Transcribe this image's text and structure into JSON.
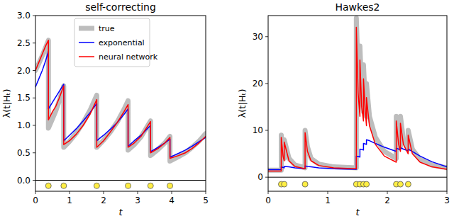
{
  "chart_data": [
    {
      "type": "line",
      "title": "self-correcting",
      "x_label": "t",
      "y_label": "λ(t|Hₜ)",
      "xlim": [
        0,
        5
      ],
      "ylim": [
        -0.2,
        3.0
      ],
      "xticks": [
        0,
        1,
        2,
        3,
        4,
        5
      ],
      "yticks": [
        {
          "value": 0,
          "label": "0.0"
        },
        0.5,
        {
          "value": 1,
          "label": "1.0"
        },
        1.5,
        {
          "value": 2,
          "label": "2.0"
        },
        2.5,
        {
          "value": 3,
          "label": "3.0"
        }
      ],
      "legend": "upper center",
      "x": [
        0,
        0.1,
        0.2,
        0.3,
        0.38,
        0.38,
        0.5,
        0.6,
        0.7,
        0.83,
        0.83,
        1.0,
        1.2,
        1.4,
        1.6,
        1.8,
        1.8,
        2.0,
        2.2,
        2.4,
        2.6,
        2.72,
        2.72,
        2.9,
        3.1,
        3.38,
        3.38,
        3.6,
        3.8,
        3.95,
        3.95,
        4.2,
        4.4,
        4.6,
        4.8,
        5.0
      ],
      "series": [
        {
          "name": "true",
          "color": "#bdbdbd",
          "line_style": "thick",
          "values": [
            2.0,
            2.13,
            2.27,
            2.42,
            2.55,
            0.95,
            1.12,
            1.27,
            1.45,
            1.72,
            0.6,
            0.71,
            0.86,
            1.05,
            1.27,
            1.55,
            0.6,
            0.73,
            0.88,
            1.06,
            1.29,
            1.45,
            0.55,
            0.65,
            0.79,
            1.08,
            0.45,
            0.56,
            0.68,
            0.8,
            0.35,
            0.43,
            0.5,
            0.6,
            0.71,
            0.85
          ]
        },
        {
          "name": "exponential",
          "color": "#0000ff",
          "line_style": "solid",
          "values": [
            1.7,
            1.85,
            2.0,
            2.18,
            2.35,
            1.3,
            1.42,
            1.52,
            1.62,
            1.75,
            0.72,
            0.82,
            0.94,
            1.08,
            1.23,
            1.4,
            0.72,
            0.82,
            0.93,
            1.05,
            1.2,
            1.3,
            0.62,
            0.72,
            0.82,
            1.0,
            0.52,
            0.6,
            0.68,
            0.75,
            0.42,
            0.49,
            0.55,
            0.62,
            0.7,
            0.78
          ]
        },
        {
          "name": "neural network",
          "color": "#ff0000",
          "line_style": "solid",
          "values": [
            2.0,
            2.15,
            2.3,
            2.45,
            2.55,
            1.1,
            1.25,
            1.35,
            1.5,
            1.72,
            0.65,
            0.72,
            0.84,
            1.0,
            1.2,
            1.47,
            0.6,
            0.72,
            0.88,
            1.05,
            1.25,
            1.38,
            0.6,
            0.68,
            0.8,
            1.07,
            0.5,
            0.58,
            0.68,
            0.78,
            0.4,
            0.45,
            0.5,
            0.58,
            0.68,
            0.8
          ]
        }
      ],
      "events": {
        "x": [
          0.38,
          0.83,
          1.8,
          2.72,
          3.38,
          3.95
        ],
        "y": -0.1,
        "color": "#ffee44",
        "marker": "circle"
      }
    },
    {
      "type": "line",
      "title": "Hawkes2",
      "x_label": "t",
      "y_label": "λ(t|Hₜ)",
      "xlim": [
        0,
        3
      ],
      "ylim": [
        -3,
        34.5
      ],
      "xticks": [
        0,
        1,
        2,
        3
      ],
      "yticks": [
        0,
        10,
        20,
        30
      ],
      "x": [
        0,
        0.22,
        0.22,
        0.25,
        0.27,
        0.27,
        0.35,
        0.45,
        0.62,
        0.62,
        0.66,
        0.72,
        0.85,
        1.1,
        1.48,
        1.48,
        1.51,
        1.54,
        1.54,
        1.57,
        1.6,
        1.6,
        1.63,
        1.65,
        1.65,
        1.7,
        1.8,
        1.95,
        2.15,
        2.15,
        2.19,
        2.22,
        2.22,
        2.27,
        2.35,
        2.35,
        2.42,
        2.55,
        2.75,
        3.0
      ],
      "series": [
        {
          "name": "true",
          "color": "#bdbdbd",
          "line_style": "thick",
          "values": [
            1.5,
            1.5,
            9.0,
            5.0,
            4.0,
            8.0,
            4.0,
            2.6,
            2.0,
            10.0,
            6.5,
            4.0,
            2.8,
            2.2,
            2.0,
            34.0,
            22.0,
            16.0,
            28.0,
            18.0,
            14.0,
            24.0,
            16.0,
            13.0,
            20.0,
            13.0,
            8.5,
            5.5,
            4.0,
            13.0,
            8.0,
            6.5,
            13.0,
            8.0,
            6.0,
            10.0,
            6.0,
            3.8,
            2.6,
            2.0
          ]
        },
        {
          "name": "exponential",
          "color": "#0000ff",
          "line_style": "solid",
          "values": [
            1.6,
            1.6,
            2.2,
            2.1,
            2.0,
            2.3,
            2.2,
            2.0,
            1.8,
            2.4,
            2.3,
            2.2,
            2.0,
            1.8,
            1.7,
            4.5,
            4.4,
            4.3,
            6.0,
            5.9,
            5.8,
            7.2,
            7.1,
            7.0,
            8.0,
            7.8,
            7.2,
            6.4,
            5.5,
            6.2,
            6.0,
            5.8,
            6.3,
            6.0,
            5.6,
            6.0,
            5.5,
            4.5,
            3.3,
            2.2
          ]
        },
        {
          "name": "neural network",
          "color": "#ff0000",
          "line_style": "solid",
          "values": [
            1.3,
            1.3,
            8.5,
            4.5,
            3.5,
            7.5,
            3.5,
            2.3,
            1.8,
            9.5,
            5.5,
            3.5,
            2.5,
            2.0,
            1.8,
            32.0,
            18.0,
            13.0,
            25.0,
            15.0,
            12.0,
            21.0,
            14.0,
            11.0,
            17.0,
            11.0,
            7.0,
            4.5,
            3.2,
            12.0,
            7.0,
            5.5,
            11.5,
            7.0,
            5.0,
            9.0,
            5.0,
            3.2,
            2.2,
            1.7
          ]
        }
      ],
      "events": {
        "x": [
          0.22,
          0.27,
          0.62,
          1.48,
          1.54,
          1.6,
          1.65,
          2.15,
          2.22,
          2.35
        ],
        "y": -1.5,
        "color": "#ffee44",
        "marker": "circle"
      }
    }
  ]
}
